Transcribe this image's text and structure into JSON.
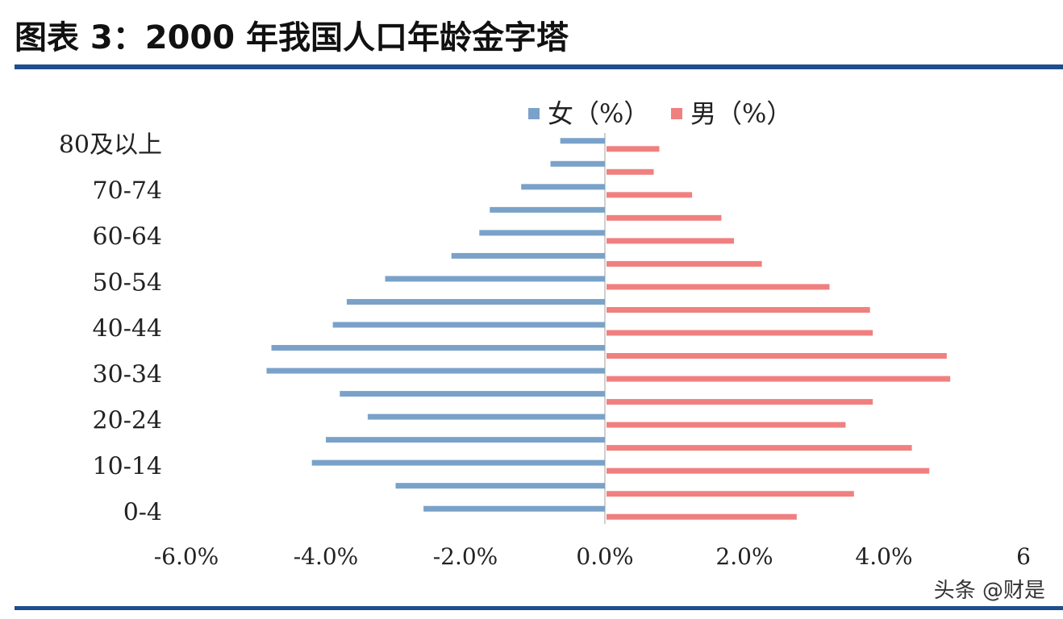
{
  "title": "图表 3：2000 年我国人口年龄金字塔",
  "watermark": "头条 @财是",
  "chart_data": {
    "type": "bar",
    "orientation": "horizontal",
    "layout": "population-pyramid",
    "categories": [
      "0-4",
      "5-9",
      "10-14",
      "15-19",
      "20-24",
      "25-29",
      "30-34",
      "35-39",
      "40-44",
      "45-49",
      "50-54",
      "55-59",
      "60-64",
      "65-69",
      "70-74",
      "75-79",
      "80及以上"
    ],
    "category_labels_shown": [
      "0-4",
      "",
      "10-14",
      "",
      "20-24",
      "",
      "30-34",
      "",
      "40-44",
      "",
      "50-54",
      "",
      "60-64",
      "",
      "70-74",
      "",
      "80及以上"
    ],
    "series": [
      {
        "name": "女（%）",
        "color": "#7aa2c9",
        "values": [
          -2.6,
          -3.0,
          -4.2,
          -4.0,
          -3.4,
          -3.8,
          -4.85,
          -4.78,
          -3.9,
          -3.7,
          -3.15,
          -2.2,
          -1.8,
          -1.65,
          -1.2,
          -0.78,
          -0.64
        ]
      },
      {
        "name": "男（%）",
        "color": "#f08080",
        "values": [
          2.75,
          3.57,
          4.65,
          4.4,
          3.45,
          3.84,
          4.95,
          4.9,
          3.84,
          3.8,
          3.22,
          2.25,
          1.85,
          1.67,
          1.25,
          0.7,
          0.78
        ]
      }
    ],
    "xaxis_ticks": [
      "-6.0%",
      "-4.0%",
      "-2.0%",
      "0.0%",
      "2.0%",
      "4.0%",
      "6"
    ],
    "xlim": [
      -6,
      6
    ],
    "legend_position": "top",
    "grid": false
  }
}
